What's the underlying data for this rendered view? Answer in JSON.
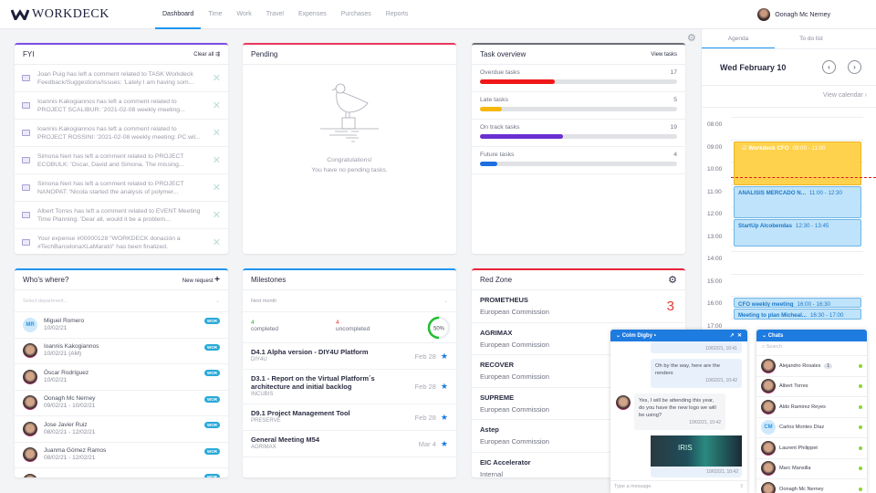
{
  "app": {
    "brand": "WORKDECK",
    "nav": [
      "Dashboard",
      "Time",
      "Work",
      "Travel",
      "Expenses",
      "Purchases",
      "Reports"
    ],
    "active_nav": "Dashboard",
    "user": "Oonagh Mc Nerney"
  },
  "fyi": {
    "title": "FYI",
    "clear_all": "Clear all",
    "accent": "#7b4ee6",
    "items": [
      "Joan Puig has left a comment related to TASK Workdeck Feedback/Suggestions/Issues: 'Lately I am having som...",
      "Ioannis Kakogiannos has left a comment related to PROJECT SCALIBUR: '2021-02-08 weekly meeting...",
      "Ioannis Kakogiannos has left a comment related to PROJECT ROSSINI: '2021-02-08 weekly meeting: PC wil...",
      "Simona Neri has left a comment related to PROJECT ECOBULK: 'Oscar, David and Simona. The missing...",
      "Simona Neri has left a comment related to PROJECT NANOPAT: 'Nicola started the analysis of polymer...",
      "Albert Torres has left a comment related to EVENT Meeting Time Planning: 'Dear all, would it be a problem...",
      "Your expense #00000128 \"WORKDECK donación a #TechBarcelonaXLaMarató\" has been finalized."
    ]
  },
  "pending": {
    "title": "Pending",
    "accent": "#e8385e",
    "line1": "Congratulations!",
    "line2": "You have no pending tasks."
  },
  "tasks": {
    "title": "Task overview",
    "view": "View tasks",
    "items": [
      {
        "label": "Overdue tasks",
        "count": "17",
        "percent": 38,
        "color": "#f01818"
      },
      {
        "label": "Late tasks",
        "count": "5",
        "percent": 11,
        "color": "#f7b80d"
      },
      {
        "label": "On track tasks",
        "count": "19",
        "percent": 42,
        "color": "#6a2fd0"
      },
      {
        "label": "Future tasks",
        "count": "4",
        "percent": 9,
        "color": "#1e6fe0"
      }
    ]
  },
  "who": {
    "title": "Who's where?",
    "new_request": "New request",
    "placeholder": "Select department...",
    "badge": "WOR",
    "people": [
      {
        "name": "Miguel Romero",
        "date": "10/02/21",
        "initials": "MR"
      },
      {
        "name": "Ioannis Kakogiannos",
        "date": "10/02/21 (AM)"
      },
      {
        "name": "Óscar Rodríguez",
        "date": "10/02/21"
      },
      {
        "name": "Oonagh Mc Nerney",
        "date": "09/02/21 - 10/02/21"
      },
      {
        "name": "Jose Javier Ruiz",
        "date": "08/02/21 - 12/02/21"
      },
      {
        "name": "Juanma Gómez Ramos",
        "date": "08/02/21 - 12/02/21"
      },
      {
        "name": "Andoni Sanchez Artolin",
        "date": ""
      }
    ]
  },
  "milestones": {
    "title": "Milestones",
    "filter": "Next month",
    "completed": "4",
    "completed_label": "completed",
    "uncompleted": "4",
    "uncompleted_label": "uncompleted",
    "percent_label": "50%",
    "percent": 50,
    "items": [
      {
        "name": "D4.1 Alpha version - DIY4U Platform",
        "project": "DIY4U",
        "date": "Feb 28"
      },
      {
        "name": "D3.1 - Report on the Virtual Platform´s architecture and initial backlog",
        "project": "INCUBIS",
        "date": "Feb 28"
      },
      {
        "name": "D9.1 Project Management Tool",
        "project": "PRESERVE",
        "date": "Feb 28"
      },
      {
        "name": "General Meeting M54",
        "project": "AGRIMAX",
        "date": "Mar 4"
      }
    ]
  },
  "redzone": {
    "title": "Red Zone",
    "accent": "#e8243a",
    "items": [
      {
        "name": "PROMETHEUS",
        "org": "European Commission",
        "count": "3"
      },
      {
        "name": "AGRIMAX",
        "org": "European Commission"
      },
      {
        "name": "RECOVER",
        "org": "European Commission"
      },
      {
        "name": "SUPREME",
        "org": "European Commission"
      },
      {
        "name": "Astep",
        "org": "European Commission"
      },
      {
        "name": "EIC Accelerator",
        "org": "Internal"
      }
    ]
  },
  "agenda": {
    "tabs": [
      "Agenda",
      "To do list"
    ],
    "date": "Wed February 10",
    "view_calendar": "View calendar ›",
    "hours": [
      "08:00",
      "09:00",
      "10:00",
      "11:00",
      "12:00",
      "13:00",
      "14:00",
      "15:00",
      "16:00",
      "17:00"
    ],
    "events": [
      {
        "title": "Workdeck CFO",
        "time": "09:00 - 11:00",
        "start": 9,
        "end": 11,
        "color": "#ffd24d"
      },
      {
        "title": "ANALISIS MERCADO N...",
        "time": "11:00 - 12:30",
        "start": 11,
        "end": 12.5
      },
      {
        "title": "StartUp Alcobendas",
        "time": "12:30 - 13:45",
        "start": 12.5,
        "end": 13.75
      },
      {
        "title": "CFO weekly meeting",
        "time": "16:00 - 16:30",
        "start": 16,
        "end": 16.5
      },
      {
        "title": "Meeting to plan Micheal...",
        "time": "16:30 - 17:00",
        "start": 16.5,
        "end": 17
      }
    ],
    "now": 10.6
  },
  "chat": {
    "name": "Colm Digby",
    "messages": [
      {
        "text": "",
        "time": "10/02/21, 10:41"
      },
      {
        "text": "Oh by the way, here are the renders",
        "time": "10/02/21, 10:42"
      },
      {
        "text": "Yes, I will be attending this year, do you have the new logo we will be using?",
        "time": "10/02/21, 10:42"
      },
      {
        "text": "IRIS",
        "time": "10/02/21, 10:42"
      }
    ],
    "placeholder": "Type a message."
  },
  "chats": {
    "title": "Chats",
    "search": "Search",
    "contacts": [
      {
        "name": "Alejandro Rosales",
        "unread": "1"
      },
      {
        "name": "Albert Torres"
      },
      {
        "name": "Aldo Ramirez Reyes"
      },
      {
        "name": "Carlos Montes Díaz",
        "initials": "CM"
      },
      {
        "name": "Laurent Philippet"
      },
      {
        "name": "Marc Mansilla"
      },
      {
        "name": "Oonagh Mc Nerney"
      }
    ]
  }
}
